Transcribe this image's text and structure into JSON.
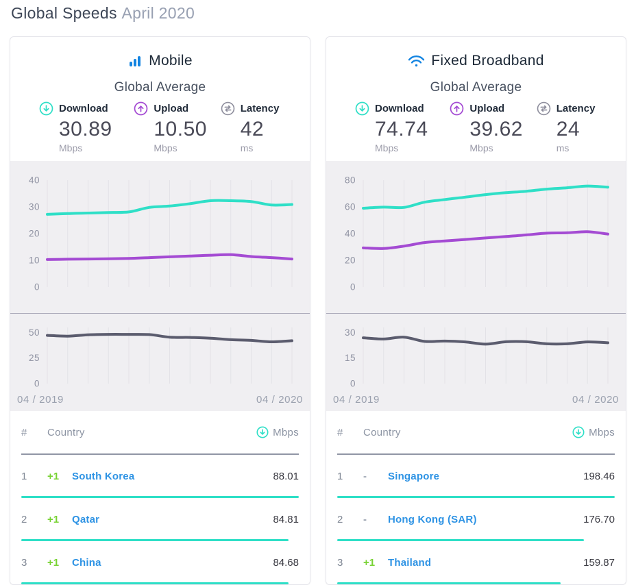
{
  "header": {
    "title_main": "Global Speeds",
    "title_period": "April 2020"
  },
  "colors": {
    "accent_teal": "#2fdfc7",
    "accent_purple": "#a44bd3",
    "latency_line": "#5b5c6e",
    "brand_blue": "#1384e1",
    "link_blue": "#2e93e4",
    "positive_green": "#77d232",
    "chart_bg": "#f0eff2",
    "grid": "#e3e2e7",
    "tick": "#9093a3"
  },
  "cards": [
    {
      "title": "Mobile",
      "icon": "mobile-signal-bars-icon",
      "stats_title": "Global Average",
      "stats": [
        {
          "label": "Download",
          "value": "30.89",
          "unit": "Mbps",
          "icon": "download-arrow-icon"
        },
        {
          "label": "Upload",
          "value": "10.50",
          "unit": "Mbps",
          "icon": "upload-arrow-icon"
        },
        {
          "label": "Latency",
          "value": "42",
          "unit": "ms",
          "icon": "latency-arrows-icon"
        }
      ],
      "table": {
        "headers": {
          "rank": "#",
          "country": "Country",
          "value": "Mbps"
        },
        "rows": [
          {
            "rank": "1",
            "change": "+1",
            "country": "South Korea",
            "value": "88.01"
          },
          {
            "rank": "2",
            "change": "+1",
            "country": "Qatar",
            "value": "84.81"
          },
          {
            "rank": "3",
            "change": "+1",
            "country": "China",
            "value": "84.68"
          }
        ]
      }
    },
    {
      "title": "Fixed Broadband",
      "icon": "wifi-icon",
      "stats_title": "Global Average",
      "stats": [
        {
          "label": "Download",
          "value": "74.74",
          "unit": "Mbps",
          "icon": "download-arrow-icon"
        },
        {
          "label": "Upload",
          "value": "39.62",
          "unit": "Mbps",
          "icon": "upload-arrow-icon"
        },
        {
          "label": "Latency",
          "value": "24",
          "unit": "ms",
          "icon": "latency-arrows-icon"
        }
      ],
      "table": {
        "headers": {
          "rank": "#",
          "country": "Country",
          "value": "Mbps"
        },
        "rows": [
          {
            "rank": "1",
            "change": "-",
            "country": "Singapore",
            "value": "198.46"
          },
          {
            "rank": "2",
            "change": "-",
            "country": "Hong Kong (SAR)",
            "value": "176.70"
          },
          {
            "rank": "3",
            "change": "+1",
            "country": "Thailand",
            "value": "159.87"
          }
        ]
      }
    }
  ],
  "chart_data": [
    {
      "type": "line",
      "title": "Mobile global average download & upload (Mbps), monthly",
      "x_range": [
        "04 / 2019",
        "04 / 2020"
      ],
      "n_points": 13,
      "ylim": [
        0,
        40
      ],
      "yticks": [
        40,
        30,
        20,
        10,
        0
      ],
      "grid": "vertical monthly gridlines",
      "legend": "none",
      "series": [
        {
          "name": "Download",
          "color": "accent_teal",
          "values": [
            27.2,
            27.5,
            27.7,
            27.9,
            28.1,
            29.8,
            30.3,
            31.2,
            32.3,
            32.3,
            32.0,
            30.7,
            30.89
          ]
        },
        {
          "name": "Upload",
          "color": "accent_purple",
          "values": [
            10.3,
            10.4,
            10.5,
            10.6,
            10.7,
            11.0,
            11.3,
            11.6,
            11.9,
            12.1,
            11.4,
            11.0,
            10.5
          ]
        }
      ]
    },
    {
      "type": "line",
      "title": "Mobile global average latency (ms), monthly",
      "x_range": [
        "04 / 2019",
        "04 / 2020"
      ],
      "n_points": 13,
      "ylim": [
        0,
        55
      ],
      "yticks": [
        50,
        25,
        0
      ],
      "grid": "vertical monthly gridlines",
      "legend": "none",
      "series": [
        {
          "name": "Latency",
          "color": "latency_line",
          "values": [
            47.2,
            46.5,
            47.8,
            48.2,
            48.2,
            48.0,
            45.5,
            45.2,
            44.5,
            43.0,
            42.3,
            40.9,
            42.0
          ]
        }
      ]
    },
    {
      "type": "line",
      "title": "Fixed broadband global average download & upload (Mbps), monthly",
      "x_range": [
        "04 / 2019",
        "04 / 2020"
      ],
      "n_points": 13,
      "ylim": [
        0,
        80
      ],
      "yticks": [
        80,
        60,
        40,
        20,
        0
      ],
      "grid": "vertical monthly gridlines",
      "legend": "none",
      "series": [
        {
          "name": "Download",
          "color": "accent_teal",
          "values": [
            59.0,
            59.8,
            59.6,
            63.5,
            65.5,
            67.3,
            69.2,
            70.6,
            71.7,
            73.3,
            74.3,
            75.6,
            74.74
          ]
        },
        {
          "name": "Upload",
          "color": "accent_purple",
          "values": [
            29.3,
            28.8,
            30.6,
            33.3,
            34.5,
            35.6,
            36.7,
            37.8,
            39.0,
            40.3,
            40.6,
            41.4,
            39.62
          ]
        }
      ]
    },
    {
      "type": "line",
      "title": "Fixed broadband global average latency (ms), monthly",
      "x_range": [
        "04 / 2019",
        "04 / 2020"
      ],
      "n_points": 13,
      "ylim": [
        0,
        33
      ],
      "yticks": [
        30,
        15,
        0
      ],
      "grid": "vertical monthly gridlines",
      "legend": "none",
      "series": [
        {
          "name": "Latency",
          "color": "latency_line",
          "values": [
            26.9,
            26.2,
            27.3,
            24.8,
            25.0,
            24.5,
            23.2,
            24.6,
            24.6,
            23.4,
            23.4,
            24.5,
            24.0
          ]
        }
      ]
    }
  ]
}
